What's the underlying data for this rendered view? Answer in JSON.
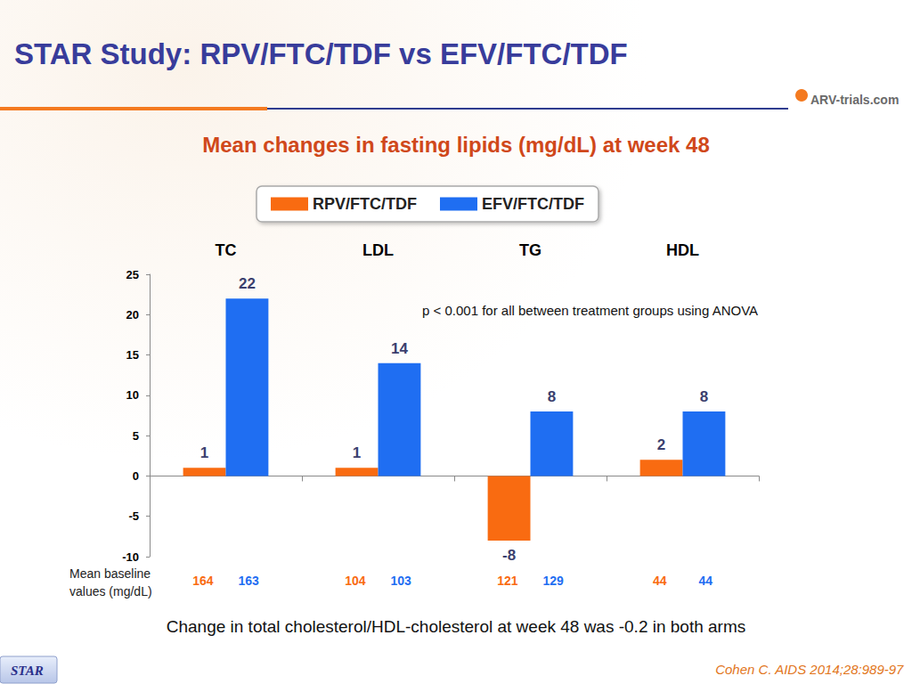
{
  "chart_data": {
    "type": "bar",
    "title": "STAR Study: RPV/FTC/TDF vs EFV/FTC/TDF",
    "subtitle": "Mean changes in fasting lipids (mg/dL) at week 48",
    "logo": "ARV-trials.com",
    "categories": [
      "TC",
      "LDL",
      "TG",
      "HDL"
    ],
    "series": [
      {
        "name": "RPV/FTC/TDF",
        "color": "#f96b11",
        "values": [
          1,
          1,
          -8,
          2
        ],
        "baseline": [
          164,
          104,
          121,
          44
        ]
      },
      {
        "name": "EFV/FTC/TDF",
        "color": "#1f6ef2",
        "values": [
          22,
          14,
          8,
          8
        ],
        "baseline": [
          163,
          103,
          129,
          44
        ]
      }
    ],
    "baseline_label": "Mean baseline values (mg/dL)",
    "ylim": [
      -10,
      25
    ],
    "yticks": [
      -10,
      -5,
      0,
      5,
      10,
      15,
      20,
      25
    ],
    "grid": false,
    "legend": "top",
    "data_labels": true,
    "annotations": [
      "p < 0.001 for all between treatment groups using ANOVA"
    ],
    "footnote": "Change in total cholesterol/HDL-cholesterol at week 48 was -0.2 in both arms",
    "source": "Cohen C. AIDS 2014;28:989-97",
    "badge": "STAR"
  }
}
